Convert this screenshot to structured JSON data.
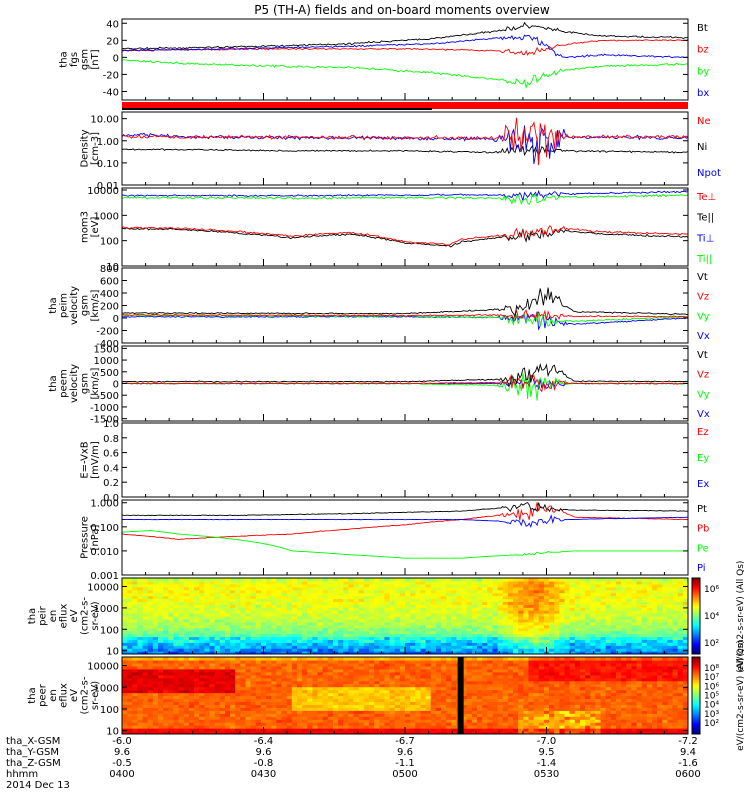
{
  "title": "P5 (TH-A) fields and on-board moments overview",
  "footer": {
    "date": "2014 Dec 13",
    "rows": [
      {
        "label": "tha_X-GSM",
        "values": [
          "-6.0",
          "-6.4",
          "-6.7",
          "-7.0",
          "-7.2"
        ]
      },
      {
        "label": "tha_Y-GSM",
        "values": [
          "9.6",
          "9.6",
          "9.6",
          "9.5",
          "9.4"
        ]
      },
      {
        "label": "tha_Z-GSM",
        "values": [
          "-0.5",
          "-0.8",
          "-1.1",
          "-1.4",
          "-1.6"
        ]
      },
      {
        "label": "hhmm",
        "values": [
          "0400",
          "0430",
          "0500",
          "0530",
          "0600"
        ]
      }
    ]
  },
  "colors": {
    "black": "#000000",
    "red": "#ff0000",
    "green": "#00ff00",
    "blue": "#0000ff"
  },
  "chart_data": [
    {
      "id": "fgs",
      "type": "line",
      "ylabel": [
        "tha",
        "fgs",
        "gsm",
        "[nT]"
      ],
      "ylim": [
        -50,
        45
      ],
      "yscale": "linear",
      "ticks": [
        {
          "v": 40,
          "t": "40"
        },
        {
          "v": 20,
          "t": "20"
        },
        {
          "v": 0,
          "t": "0"
        },
        {
          "v": -20,
          "t": "-20"
        },
        {
          "v": -40,
          "t": "-40"
        }
      ],
      "legend": [
        {
          "name": "Bt",
          "color": "#000000"
        },
        {
          "name": "bz",
          "color": "#ff0000"
        },
        {
          "name": "by",
          "color": "#00ff00"
        },
        {
          "name": "bx",
          "color": "#0000ff"
        }
      ],
      "series": [
        {
          "name": "Bt",
          "color": "#000000",
          "noise": 1.5,
          "burst": 6,
          "x": [
            0,
            0.1,
            0.25,
            0.4,
            0.55,
            0.65,
            0.72,
            0.78,
            0.85,
            1
          ],
          "y": [
            10,
            11,
            13,
            16,
            22,
            30,
            37,
            30,
            25,
            23
          ]
        },
        {
          "name": "bz",
          "color": "#ff0000",
          "noise": 1.2,
          "burst": 6,
          "x": [
            0,
            0.1,
            0.3,
            0.5,
            0.65,
            0.72,
            0.78,
            0.85,
            1
          ],
          "y": [
            8,
            9,
            10,
            10,
            8,
            5,
            15,
            20,
            20
          ]
        },
        {
          "name": "by",
          "color": "#00ff00",
          "noise": 1.8,
          "burst": 10,
          "x": [
            0,
            0.1,
            0.25,
            0.4,
            0.55,
            0.65,
            0.72,
            0.78,
            0.85,
            1
          ],
          "y": [
            -3,
            -7,
            -10,
            -12,
            -18,
            -25,
            -30,
            -15,
            -10,
            -8
          ]
        },
        {
          "name": "bx",
          "color": "#0000ff",
          "noise": 1.5,
          "burst": 8,
          "x": [
            0,
            0.1,
            0.25,
            0.4,
            0.55,
            0.65,
            0.72,
            0.78,
            0.85,
            1
          ],
          "y": [
            8,
            9,
            11,
            13,
            16,
            22,
            25,
            0,
            3,
            0
          ]
        }
      ]
    },
    {
      "id": "density",
      "type": "line",
      "ylabel": [
        "Density",
        "[cm-3]"
      ],
      "ylim": [
        0.01,
        20
      ],
      "yscale": "log",
      "ticks": [
        {
          "v": 10,
          "t": "10.00"
        },
        {
          "v": 1,
          "t": "1.00"
        },
        {
          "v": 0.1,
          "t": "0.10"
        },
        {
          "v": 0.01,
          "t": "0.01"
        }
      ],
      "legend": [
        {
          "name": "Ne",
          "color": "#ff0000"
        },
        {
          "name": "Ni",
          "color": "#000000"
        },
        {
          "name": "Npot",
          "color": "#0000ff"
        }
      ],
      "series": [
        {
          "name": "Ni",
          "color": "#000000",
          "noise": 0.05,
          "burst": 0.4,
          "x": [
            0,
            0.1,
            0.3,
            0.5,
            0.65,
            0.72,
            0.78,
            1
          ],
          "y": [
            0.4,
            0.4,
            0.35,
            0.35,
            0.3,
            0.4,
            0.35,
            0.3
          ]
        },
        {
          "name": "Npot",
          "color": "#0000ff",
          "noise": 0.12,
          "burst": 1.5,
          "x": [
            0,
            0.05,
            0.1,
            0.3,
            0.5,
            0.65,
            0.72,
            0.78,
            1
          ],
          "y": [
            1.6,
            1.9,
            1.5,
            1.4,
            1.3,
            1.2,
            1.0,
            1.4,
            1.4
          ]
        },
        {
          "name": "Ne",
          "color": "#ff0000",
          "noise": 0.12,
          "burst": 1.6,
          "x": [
            0,
            0.1,
            0.3,
            0.5,
            0.65,
            0.72,
            0.78,
            1
          ],
          "y": [
            1.6,
            1.5,
            1.5,
            1.4,
            1.3,
            1.1,
            1.5,
            1.5
          ]
        }
      ]
    },
    {
      "id": "moments",
      "type": "line",
      "ylabel": [
        "mom3",
        "[eV]"
      ],
      "ylim": [
        10,
        12000
      ],
      "yscale": "log",
      "ticks": [
        {
          "v": 10000,
          "t": "10000"
        },
        {
          "v": 1000,
          "t": "1000"
        },
        {
          "v": 100,
          "t": "100"
        },
        {
          "v": 10,
          "t": "10"
        }
      ],
      "legend": [
        {
          "name": "Te⊥",
          "color": "#ff0000"
        },
        {
          "name": "Te||",
          "color": "#000000"
        },
        {
          "name": "Ti⊥",
          "color": "#0000ff"
        },
        {
          "name": "Ti||",
          "color": "#00ff00"
        }
      ],
      "series": [
        {
          "name": "Ti⊥",
          "color": "#0000ff",
          "noise": 0.05,
          "burst": 0.2,
          "x": [
            0,
            0.3,
            0.6,
            0.72,
            0.78,
            1
          ],
          "y": [
            6000,
            6000,
            6500,
            6000,
            7000,
            8500
          ]
        },
        {
          "name": "Ti||",
          "color": "#00ff00",
          "noise": 0.06,
          "burst": 0.25,
          "x": [
            0,
            0.3,
            0.6,
            0.72,
            0.78,
            1
          ],
          "y": [
            5000,
            4800,
            5000,
            4500,
            5200,
            6200
          ]
        },
        {
          "name": "Te||",
          "color": "#000000",
          "noise": 0.05,
          "burst": 0.3,
          "x": [
            0,
            0.1,
            0.2,
            0.3,
            0.4,
            0.5,
            0.58,
            0.6,
            0.7,
            0.78,
            0.85,
            1
          ],
          "y": [
            300,
            280,
            200,
            130,
            180,
            80,
            60,
            90,
            150,
            240,
            180,
            140
          ]
        },
        {
          "name": "Te⊥",
          "color": "#ff0000",
          "noise": 0.05,
          "burst": 0.3,
          "x": [
            0,
            0.1,
            0.2,
            0.3,
            0.4,
            0.5,
            0.58,
            0.6,
            0.7,
            0.78,
            0.85,
            1
          ],
          "y": [
            330,
            310,
            230,
            150,
            210,
            90,
            70,
            110,
            180,
            300,
            220,
            180
          ]
        }
      ]
    },
    {
      "id": "peim",
      "type": "line",
      "ylabel": [
        "tha",
        "peim",
        "velocity",
        "gsm",
        "[km/s]"
      ],
      "ylim": [
        -400,
        800
      ],
      "yscale": "linear",
      "ticks": [
        {
          "v": 800,
          "t": "800"
        },
        {
          "v": 600,
          "t": "600"
        },
        {
          "v": 400,
          "t": "400"
        },
        {
          "v": 200,
          "t": "200"
        },
        {
          "v": 0,
          "t": "0"
        },
        {
          "v": -200,
          "t": "-200"
        },
        {
          "v": -400,
          "t": "-400"
        }
      ],
      "legend": [
        {
          "name": "Vt",
          "color": "#000000"
        },
        {
          "name": "Vz",
          "color": "#ff0000"
        },
        {
          "name": "Vy",
          "color": "#00ff00"
        },
        {
          "name": "Vx",
          "color": "#0000ff"
        }
      ],
      "series": [
        {
          "name": "Vx",
          "color": "#0000ff",
          "noise": 15,
          "burst": 220,
          "x": [
            0,
            0.5,
            0.7,
            0.8,
            1
          ],
          "y": [
            20,
            20,
            10,
            -100,
            0
          ]
        },
        {
          "name": "Vy",
          "color": "#00ff00",
          "noise": 18,
          "burst": 200,
          "x": [
            0,
            0.5,
            0.7,
            0.8,
            1
          ],
          "y": [
            40,
            30,
            0,
            -50,
            20
          ]
        },
        {
          "name": "Vz",
          "color": "#ff0000",
          "noise": 15,
          "burst": 150,
          "x": [
            0,
            0.5,
            0.7,
            0.8,
            1
          ],
          "y": [
            50,
            40,
            50,
            30,
            20
          ]
        },
        {
          "name": "Vt",
          "color": "#000000",
          "noise": 15,
          "burst": 260,
          "x": [
            0,
            0.5,
            0.7,
            0.75,
            0.8,
            1
          ],
          "y": [
            80,
            70,
            150,
            400,
            100,
            60
          ]
        }
      ]
    },
    {
      "id": "peem",
      "type": "line",
      "ylabel": [
        "tha",
        "peem",
        "velocity",
        "gsm",
        "[km/s]"
      ],
      "ylim": [
        -1600,
        1600
      ],
      "yscale": "linear",
      "ticks": [
        {
          "v": 1500,
          "t": "1500"
        },
        {
          "v": 1000,
          "t": "1000"
        },
        {
          "v": 500,
          "t": "500"
        },
        {
          "v": 0,
          "t": "0"
        },
        {
          "v": -500,
          "t": "-500"
        },
        {
          "v": -1000,
          "t": "-1000"
        },
        {
          "v": -1500,
          "t": "-1500"
        }
      ],
      "legend": [
        {
          "name": "Vt",
          "color": "#000000"
        },
        {
          "name": "Vz",
          "color": "#ff0000"
        },
        {
          "name": "Vy",
          "color": "#00ff00"
        },
        {
          "name": "Vx",
          "color": "#0000ff"
        }
      ],
      "series": [
        {
          "name": "Vx",
          "color": "#0000ff",
          "noise": 30,
          "burst": 500,
          "x": [
            0,
            0.5,
            0.7,
            0.8,
            1
          ],
          "y": [
            0,
            0,
            0,
            0,
            0
          ]
        },
        {
          "name": "Vy",
          "color": "#00ff00",
          "noise": 40,
          "burst": 900,
          "x": [
            0,
            0.5,
            0.7,
            0.8,
            1
          ],
          "y": [
            0,
            0,
            -100,
            0,
            0
          ]
        },
        {
          "name": "Vz",
          "color": "#ff0000",
          "noise": 30,
          "burst": 500,
          "x": [
            0,
            0.5,
            0.7,
            0.8,
            1
          ],
          "y": [
            0,
            0,
            50,
            0,
            0
          ]
        },
        {
          "name": "Vt",
          "color": "#000000",
          "noise": 35,
          "burst": 700,
          "x": [
            0,
            0.5,
            0.7,
            0.75,
            0.8,
            1
          ],
          "y": [
            80,
            80,
            200,
            800,
            100,
            80
          ]
        }
      ]
    },
    {
      "id": "efield",
      "type": "line",
      "ylabel": [
        "E=-VxB",
        "[mV/m]"
      ],
      "ylim": [
        0,
        1
      ],
      "yscale": "linear",
      "ticks": [
        {
          "v": 1,
          "t": "1.0"
        },
        {
          "v": 0.8,
          "t": "0.8"
        },
        {
          "v": 0.6,
          "t": "0.6"
        },
        {
          "v": 0.4,
          "t": "0.4"
        },
        {
          "v": 0.2,
          "t": "0.2"
        },
        {
          "v": 0,
          "t": "0.0"
        }
      ],
      "legend": [
        {
          "name": "Ez",
          "color": "#ff0000"
        },
        {
          "name": "Ey",
          "color": "#00ff00"
        },
        {
          "name": "Ex",
          "color": "#0000ff"
        }
      ],
      "series": []
    },
    {
      "id": "pressure",
      "type": "line",
      "ylabel": [
        "Pressure",
        "[nPa]"
      ],
      "ylim": [
        0.001,
        1.3
      ],
      "yscale": "log",
      "ticks": [
        {
          "v": 1,
          "t": "1.000"
        },
        {
          "v": 0.1,
          "t": "0.100"
        },
        {
          "v": 0.01,
          "t": "0.010"
        },
        {
          "v": 0.001,
          "t": "0.001"
        }
      ],
      "legend": [
        {
          "name": "Pt",
          "color": "#000000"
        },
        {
          "name": "Pb",
          "color": "#ff0000"
        },
        {
          "name": "Pe",
          "color": "#00ff00"
        },
        {
          "name": "Pi",
          "color": "#0000ff"
        }
      ],
      "series": [
        {
          "name": "Pb",
          "color": "#ff0000",
          "noise": 0.02,
          "burst": 0.5,
          "x": [
            0,
            0.1,
            0.2,
            0.3,
            0.4,
            0.5,
            0.6,
            0.7,
            0.75,
            0.8,
            1
          ],
          "y": [
            0.05,
            0.03,
            0.04,
            0.05,
            0.08,
            0.12,
            0.2,
            0.35,
            0.6,
            0.25,
            0.2
          ]
        },
        {
          "name": "Pe",
          "color": "#00ff00",
          "noise": 0.002,
          "burst": 0.08,
          "x": [
            0,
            0.05,
            0.1,
            0.2,
            0.3,
            0.4,
            0.5,
            0.6,
            0.7,
            0.8,
            1
          ],
          "y": [
            0.06,
            0.07,
            0.05,
            0.03,
            0.01,
            0.007,
            0.005,
            0.005,
            0.007,
            0.01,
            0.01
          ]
        },
        {
          "name": "Pi",
          "color": "#0000ff",
          "noise": 0.01,
          "burst": 0.3,
          "x": [
            0,
            0.3,
            0.6,
            0.72,
            0.78,
            1
          ],
          "y": [
            0.2,
            0.2,
            0.2,
            0.15,
            0.2,
            0.25
          ]
        },
        {
          "name": "Pt",
          "color": "#000000",
          "noise": 0.02,
          "burst": 0.3,
          "x": [
            0,
            0.2,
            0.4,
            0.6,
            0.72,
            0.78,
            1
          ],
          "y": [
            0.3,
            0.3,
            0.35,
            0.45,
            0.7,
            0.5,
            0.45
          ]
        }
      ]
    },
    {
      "id": "peir",
      "type": "heatmap",
      "ylabel": [
        "tha",
        "peir",
        "en",
        "eflux",
        "eV",
        "(cm2-s-",
        "sr-eV)"
      ],
      "ylim": [
        7,
        25000
      ],
      "yscale": "log",
      "ticks": [
        {
          "v": 10000,
          "t": "10000"
        },
        {
          "v": 1000,
          "t": "1000"
        },
        {
          "v": 100,
          "t": "100"
        },
        {
          "v": 10,
          "t": "10"
        }
      ],
      "colorbar": {
        "label": "eV/(cm2-s-sr-eV) (All Qs)",
        "ticks": [
          "10⁶",
          "10⁴",
          "10²"
        ]
      }
    },
    {
      "id": "peer",
      "type": "heatmap",
      "ylabel": [
        "tha",
        "peer",
        "en",
        "eflux",
        "eV",
        "(cm2-s-",
        "sr-eV)"
      ],
      "ylim": [
        7,
        25000
      ],
      "yscale": "log",
      "ticks": [
        {
          "v": 10000,
          "t": "10000"
        },
        {
          "v": 1000,
          "t": "1000"
        },
        {
          "v": 100,
          "t": "100"
        },
        {
          "v": 10,
          "t": "10"
        }
      ],
      "colorbar": {
        "label": "eV/(cm2-s-sr-eV) (All Qs)",
        "ticks": [
          "10⁸",
          "10⁷",
          "10⁶",
          "10⁵",
          "10⁴",
          "10³",
          "10²"
        ]
      }
    }
  ]
}
